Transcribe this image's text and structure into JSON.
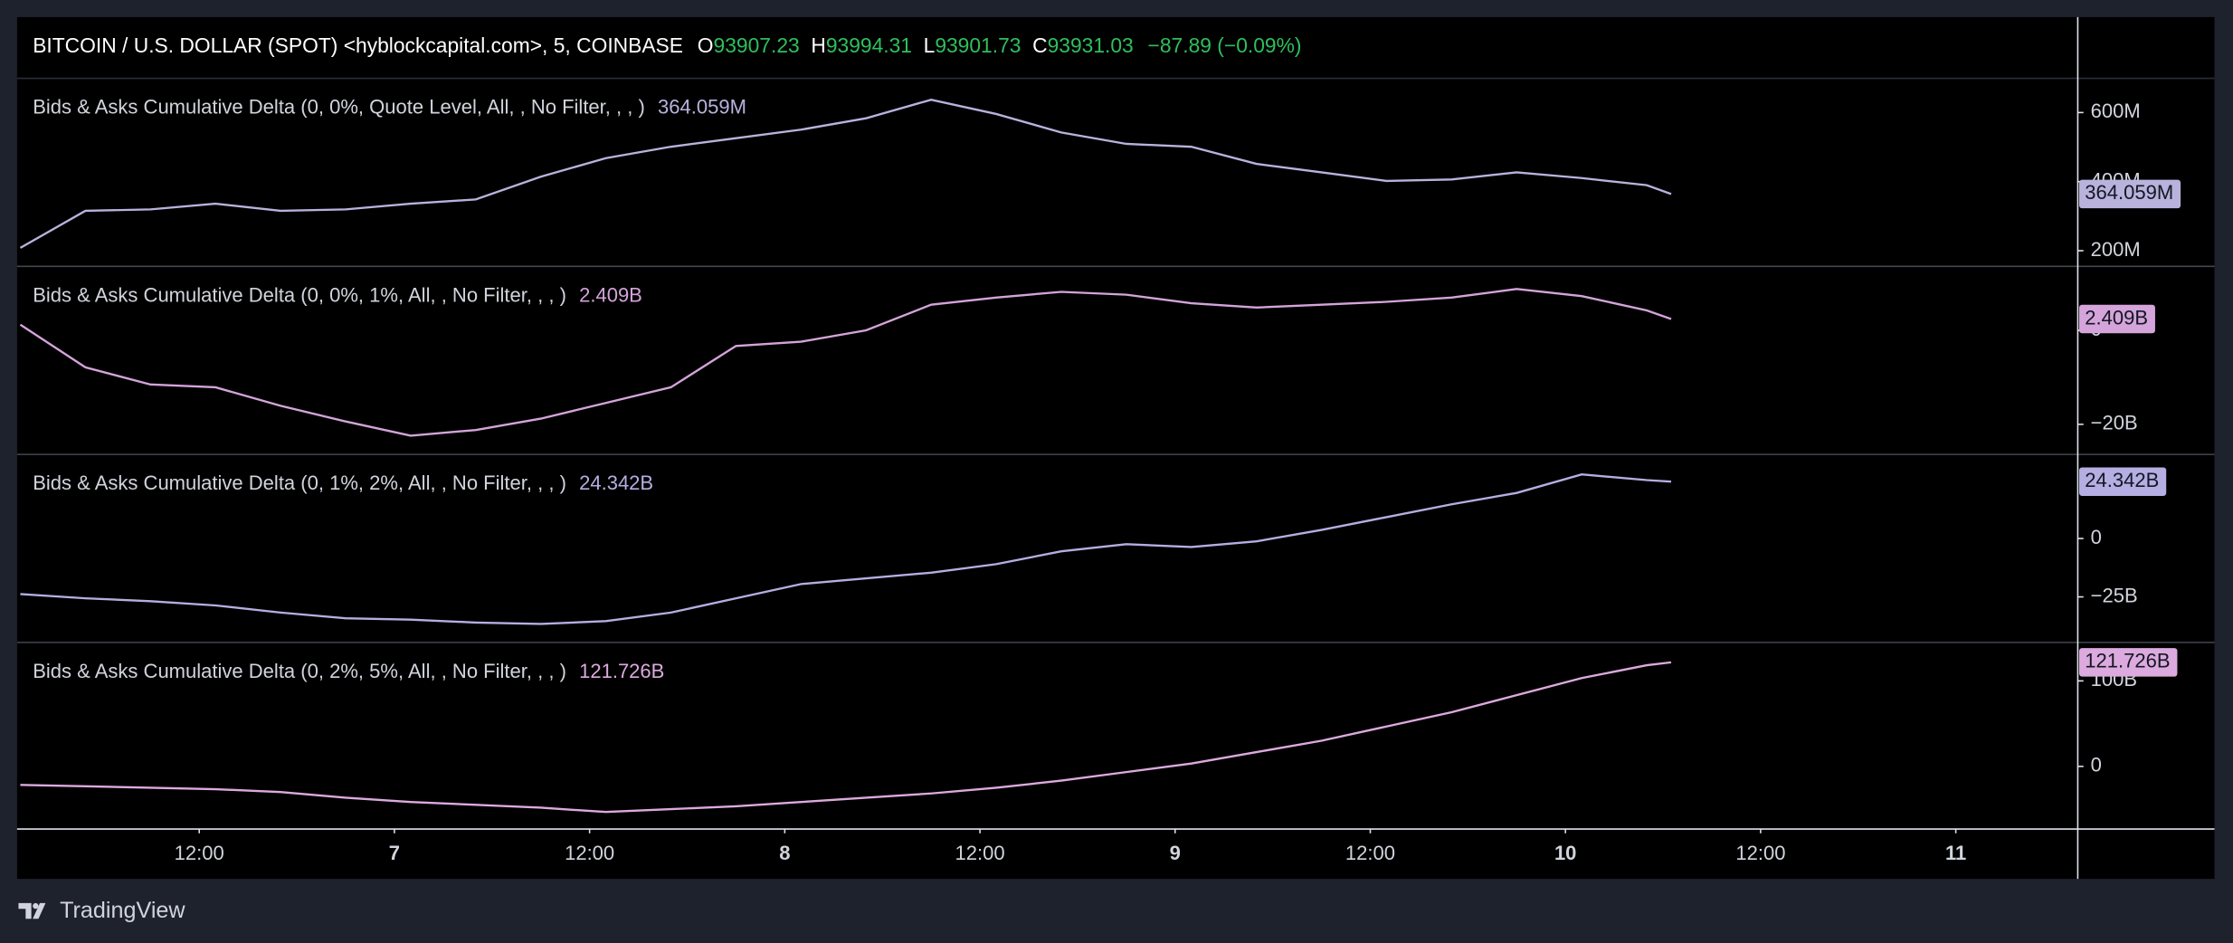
{
  "header": {
    "symbol": "BITCOIN / U.S. DOLLAR (SPOT) <hyblockcapital.com>, 5, COINBASE",
    "ohlc": [
      {
        "key": "O",
        "value": "93907.23"
      },
      {
        "key": "H",
        "value": "93994.31"
      },
      {
        "key": "L",
        "value": "93901.73"
      },
      {
        "key": "C",
        "value": "93931.03"
      }
    ],
    "change": "−87.89 (−0.09%)"
  },
  "footer": {
    "brand": "TradingView"
  },
  "chart_data": {
    "type": "line",
    "x": [
      -23,
      -19,
      -15,
      -11,
      -7,
      -3,
      1,
      5,
      9,
      13,
      17,
      21,
      25,
      29,
      33,
      37,
      41,
      45,
      49,
      53,
      57,
      61,
      65,
      69,
      73,
      77,
      78.5
    ],
    "xlim": [
      -23.2,
      103.5
    ],
    "xticks": [
      {
        "value": -12,
        "label": "12:00"
      },
      {
        "value": 0,
        "label": "7"
      },
      {
        "value": 12,
        "label": "12:00"
      },
      {
        "value": 24,
        "label": "8"
      },
      {
        "value": 36,
        "label": "12:00"
      },
      {
        "value": 48,
        "label": "9"
      },
      {
        "value": 60,
        "label": "12:00"
      },
      {
        "value": 72,
        "label": "10"
      },
      {
        "value": 84,
        "label": "12:00"
      },
      {
        "value": 96,
        "label": "11"
      }
    ],
    "series": [
      {
        "name": "Bids & Asks Cumulative Delta (0, 0%, Quote Level, All, , No Filter, , , )",
        "color": "#b9b2dd",
        "ylim": [
          154.6,
          699
        ],
        "yticks": [
          {
            "value": 200,
            "label": "200M"
          },
          {
            "value": 400,
            "label": "400M"
          },
          {
            "value": 600,
            "label": "600M"
          }
        ],
        "values": [
          208.2,
          315.4,
          319.6,
          336.1,
          315.4,
          319.6,
          336.1,
          348.4,
          414.4,
          468.0,
          501.0,
          525.7,
          550.5,
          583.5,
          637.1,
          595.9,
          542.3,
          509.3,
          501.0,
          451.5,
          426.8,
          402.0,
          406.2,
          426.8,
          410.3,
          389.7,
          364.059
        ],
        "value_labels": [
          null,
          null,
          null,
          null,
          null,
          null,
          null,
          null,
          null,
          null,
          null,
          null,
          null,
          null,
          null,
          null,
          null,
          null,
          null,
          null,
          null,
          null,
          null,
          null,
          null,
          null,
          "364.059M"
        ]
      },
      {
        "name": "Bids & Asks Cumulative Delta (0, 0%, 1%, All, , No Filter, , , )",
        "color": "#d4a4da",
        "ylim": [
          -26.4,
          13.6
        ],
        "yticks": [
          {
            "value": -20,
            "label": "−20B"
          },
          0
        ],
        "values": [
          1.21,
          -7.88,
          -11.52,
          -12.12,
          -16.06,
          -19.39,
          -22.42,
          -21.21,
          -18.79,
          -15.45,
          -12.12,
          -3.33,
          -2.42,
          0,
          5.45,
          6.97,
          8.18,
          7.58,
          5.76,
          4.85,
          5.45,
          6.06,
          6.97,
          8.79,
          7.27,
          4.24,
          2.409
        ],
        "value_labels": [
          null,
          null,
          null,
          null,
          null,
          null,
          null,
          null,
          null,
          null,
          null,
          null,
          null,
          null,
          null,
          null,
          null,
          null,
          null,
          null,
          null,
          null,
          null,
          null,
          null,
          null,
          "2.409B"
        ]
      },
      {
        "name": "Bids & Asks Cumulative Delta (0, 1%, 2%, All, , No Filter, , , )",
        "color": "#b5aee2",
        "ylim": [
          -44.5,
          36
        ],
        "yticks": [
          {
            "value": -25,
            "label": "−25B"
          },
          0
        ],
        "values": [
          -23.78,
          -25.61,
          -26.83,
          -28.66,
          -31.71,
          -34.15,
          -34.76,
          -35.98,
          -36.59,
          -35.37,
          -31.71,
          -25.61,
          -19.51,
          -17.07,
          -14.63,
          -10.98,
          -5.49,
          -2.44,
          -3.66,
          -1.22,
          3.66,
          9.15,
          14.63,
          19.51,
          27.44,
          25.0,
          24.342
        ],
        "value_labels": [
          null,
          null,
          null,
          null,
          null,
          null,
          null,
          null,
          null,
          null,
          null,
          null,
          null,
          null,
          null,
          null,
          null,
          null,
          null,
          null,
          null,
          null,
          null,
          null,
          null,
          null,
          "24.342B"
        ]
      },
      {
        "name": "Bids & Asks Cumulative Delta (0, 2%, 5%, All, , No Filter, , , )",
        "color": "#dcaade",
        "ylim": [
          -73.3,
          145
        ],
        "yticks": [
          {
            "value": 100,
            "label": "100B"
          },
          0
        ],
        "values": [
          -21.67,
          -23.33,
          -25,
          -26.67,
          -30,
          -36.67,
          -41.67,
          -45,
          -48.33,
          -53.33,
          -50,
          -46.67,
          -41.67,
          -36.67,
          -31.67,
          -25,
          -16.67,
          -6.67,
          3.33,
          16.67,
          30,
          46.67,
          63.33,
          83.33,
          103.33,
          118.33,
          121.726
        ],
        "value_labels": [
          null,
          null,
          null,
          null,
          null,
          null,
          null,
          null,
          null,
          null,
          null,
          null,
          null,
          null,
          null,
          null,
          null,
          null,
          null,
          null,
          null,
          null,
          null,
          null,
          null,
          null,
          "121.726B"
        ]
      }
    ]
  }
}
